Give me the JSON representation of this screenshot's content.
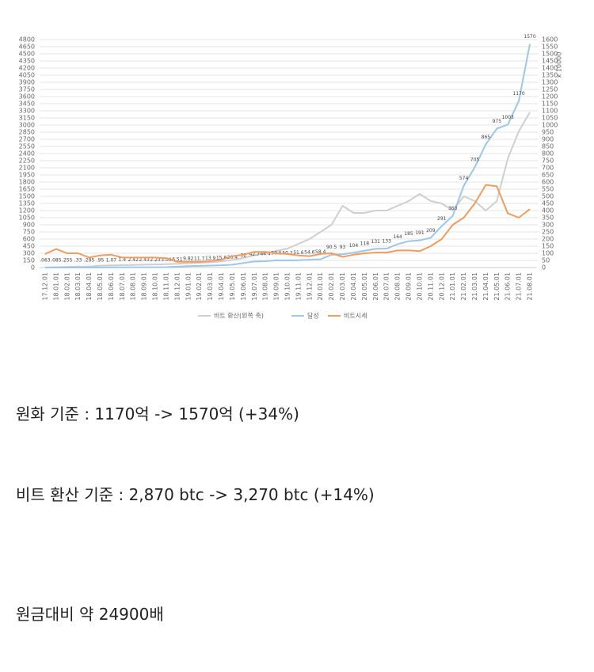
{
  "chart_data": {
    "type": "line",
    "y2_unit_label": "x 10000",
    "categories": [
      "17.12.01",
      "18.01.01",
      "18.02.01",
      "18.03.01",
      "18.04.01",
      "18.05.01",
      "18.06.01",
      "18.07.01",
      "18.08.01",
      "18.09.01",
      "18.10.01",
      "18.11.01",
      "18.12.01",
      "19.01.01",
      "19.02.01",
      "19.03.01",
      "19.04.01",
      "19.05.01",
      "19.06.01",
      "19.07.01",
      "19.08.01",
      "19.09.01",
      "19.10.01",
      "19.11.01",
      "19.12.01",
      "20.01.01",
      "20.02.01",
      "20.03.01",
      "20.04.01",
      "20.05.01",
      "20.06.01",
      "20.07.01",
      "20.08.01",
      "20.09.01",
      "20.10.01",
      "20.11.01",
      "20.12.01",
      "21.01.01",
      "21.02.01",
      "21.03.01",
      "21.04.01",
      "21.05.01",
      "21.06.01",
      "21.07.01",
      "21.08.01"
    ],
    "series": [
      {
        "name": "비트 환산(왼쪽 축)",
        "color": "#cfcfcf",
        "axis": "y",
        "values": [
          5,
          8,
          15,
          20,
          20,
          40,
          45,
          50,
          55,
          60,
          65,
          70,
          80,
          90,
          100,
          110,
          130,
          160,
          200,
          260,
          300,
          350,
          400,
          500,
          600,
          750,
          900,
          1300,
          1150,
          1150,
          1200,
          1200,
          1300,
          1400,
          1550,
          1400,
          1350,
          1200,
          1500,
          1400,
          1200,
          1400,
          2300,
          2870,
          3270
        ]
      },
      {
        "name": "달성",
        "color": "#9dc6e8",
        "axis": "y2",
        "values": [
          0.063,
          0.085,
          0.255,
          0.33,
          0.295,
          0.95,
          1.07,
          1.4,
          2.42,
          2.43,
          2.23,
          3.09,
          6.51,
          9.82,
          11.7,
          13.9,
          15.8,
          20.4,
          32,
          42.7,
          44.4,
          50.5,
          50.2,
          51.6,
          54.6,
          58.4,
          90.5,
          93,
          104,
          118,
          131,
          133,
          164,
          185,
          191,
          209,
          291,
          363,
          574,
          705,
          865,
          975,
          1003,
          1170,
          1570
        ],
        "value_labels": [
          ".063",
          ".085",
          ".255",
          ".33",
          ".295",
          ".95",
          "1.07",
          "1.4",
          "2.42",
          "2.43",
          "2.23",
          "3.09",
          "6.51",
          "9.82",
          "11.7",
          "13.9",
          "15.8",
          "20.4",
          "32",
          "42.7",
          "44.4",
          "50.5",
          "50.2",
          "51.6",
          "54.6",
          "58.4",
          "90.5",
          "93",
          "104",
          "118",
          "131",
          "133",
          "164",
          "185",
          "191",
          "209",
          "291",
          "363",
          "574",
          "705",
          "865",
          "975",
          "1003",
          "1170",
          "1570"
        ]
      },
      {
        "name": "비트시세",
        "color": "#ef9c5c",
        "axis": "y2",
        "values": [
          95,
          130,
          100,
          100,
          70,
          85,
          90,
          70,
          70,
          70,
          70,
          65,
          40,
          40,
          40,
          45,
          55,
          80,
          90,
          110,
          110,
          100,
          95,
          85,
          80,
          95,
          100,
          75,
          90,
          100,
          105,
          105,
          120,
          120,
          115,
          150,
          200,
          300,
          350,
          450,
          580,
          570,
          380,
          350,
          410
        ]
      }
    ],
    "ylim": [
      0,
      4800
    ],
    "yticks": [
      0,
      150,
      300,
      450,
      600,
      750,
      900,
      1050,
      1200,
      1350,
      1500,
      1650,
      1800,
      1950,
      2100,
      2250,
      2400,
      2550,
      2700,
      2850,
      3000,
      3150,
      3300,
      3450,
      3600,
      3750,
      3900,
      4050,
      4200,
      4350,
      4500,
      4650,
      4800
    ],
    "y2lim": [
      0,
      1600
    ],
    "y2ticks": [
      0,
      50,
      100,
      150,
      200,
      250,
      300,
      350,
      400,
      450,
      500,
      550,
      600,
      650,
      700,
      750,
      800,
      850,
      900,
      950,
      1000,
      1050,
      1100,
      1150,
      1200,
      1250,
      1300,
      1350,
      1400,
      1450,
      1500,
      1550,
      1600
    ],
    "grid": true,
    "legend": "bottom"
  },
  "text_lines": [
    "원화 기준 : 1170억 -> 1570억 (+34%)",
    "비트 환산 기준 : 2,870 btc -> 3,270 btc (+14%)",
    "원금대비 약 24900배"
  ]
}
